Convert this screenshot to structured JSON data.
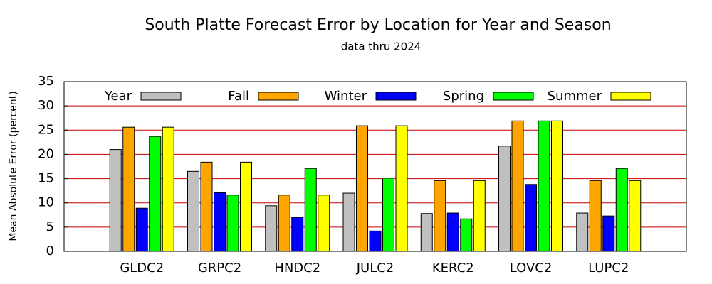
{
  "chart_data": {
    "type": "bar",
    "title": "South Platte Forecast Error by Location for Year and Season",
    "subtitle": "data thru 2024",
    "y_label": "Mean Absolute Error (percent)",
    "categories": [
      "GLDC2",
      "GRPC2",
      "HNDC2",
      "JULC2",
      "KERC2",
      "LOVC2",
      "LUPC2"
    ],
    "series": [
      {
        "name": "Year",
        "color": "#c0c0c0",
        "values": [
          21,
          16.5,
          9.4,
          12,
          7.8,
          21.7,
          7.9
        ]
      },
      {
        "name": "Fall",
        "color": "#ffa500",
        "values": [
          25.6,
          18.4,
          11.6,
          25.9,
          14.6,
          26.9,
          14.6
        ]
      },
      {
        "name": "Winter",
        "color": "#0000ff",
        "values": [
          8.9,
          12.1,
          7,
          4.2,
          7.9,
          13.8,
          7.3
        ]
      },
      {
        "name": "Spring",
        "color": "#00ff00",
        "values": [
          23.7,
          11.6,
          17.1,
          15.1,
          6.7,
          26.9,
          17.1
        ]
      },
      {
        "name": "Summer",
        "color": "#ffff00",
        "values": [
          25.6,
          18.4,
          11.6,
          25.9,
          14.6,
          26.9,
          14.6
        ]
      }
    ],
    "ylim": [
      0,
      35
    ],
    "yticks": [
      0,
      5,
      10,
      15,
      20,
      25,
      30,
      35
    ],
    "grid": true,
    "grid_color": "#cc0000",
    "legend": "top"
  }
}
